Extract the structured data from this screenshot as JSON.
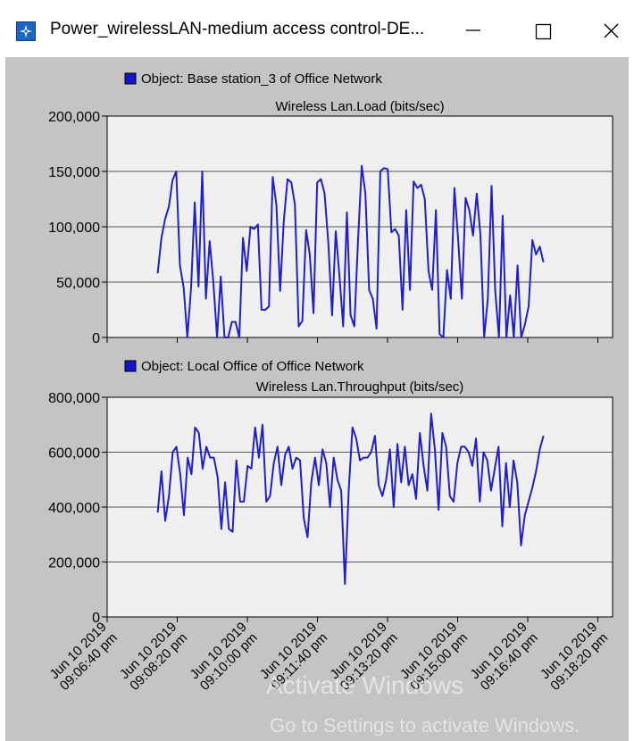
{
  "window": {
    "title": "Power_wirelessLAN-medium access control-DE...",
    "minimize_icon": "minimize-icon",
    "maximize_icon": "maximize-icon",
    "close_icon": "close-icon",
    "app_icon": "opnet-app-icon"
  },
  "colors": {
    "line": "#1f1fcc",
    "plot_bg": "#efefef",
    "panel_bg": "#c4c4c4",
    "legend_swatch": "#1414c8"
  },
  "x_ticks": [
    "Jun 10 2019\n09:06:40 pm",
    "Jun 10 2019\n09:08:20 pm",
    "Jun 10 2019\n09:10:00 pm",
    "Jun 10 2019\n09:11:40 pm",
    "Jun 10 2019\n09:13:20 pm",
    "Jun 10 2019\n09:15:00 pm",
    "Jun 10 2019\n09:16:40 pm",
    "Jun 10 2019\n09:18:20 pm"
  ],
  "chart_data": [
    {
      "type": "line",
      "legend": "Object: Base station_3 of Office Network",
      "title": "Wireless Lan.Load (bits/sec)",
      "y_ticks": [
        "0",
        "50,000",
        "100,000",
        "150,000",
        "200,000"
      ],
      "ylim": [
        0,
        200000
      ],
      "x_range": [
        0,
        3
      ],
      "x_start": 0.3,
      "x_end": 2.59,
      "values": [
        58000,
        90000,
        107000,
        118000,
        142000,
        150000,
        65000,
        45000,
        0,
        45000,
        122000,
        46000,
        150000,
        35000,
        87000,
        50000,
        0,
        55000,
        0,
        0,
        14000,
        14000,
        0,
        90000,
        60000,
        100000,
        98000,
        102000,
        25000,
        25000,
        28000,
        145000,
        120000,
        42000,
        105000,
        143000,
        140000,
        120000,
        10000,
        15000,
        97000,
        75000,
        22000,
        140000,
        143000,
        130000,
        85000,
        20000,
        96000,
        55000,
        10000,
        113000,
        20000,
        10000,
        87000,
        155000,
        130000,
        43000,
        35000,
        8000,
        150000,
        153000,
        152000,
        95000,
        98000,
        92000,
        25000,
        115000,
        43000,
        141000,
        135000,
        138000,
        125000,
        60000,
        43000,
        115000,
        3000,
        0,
        61000,
        35000,
        135000,
        88000,
        35000,
        126000,
        115000,
        92000,
        130000,
        93000,
        0,
        35000,
        137000,
        42000,
        0,
        110000,
        0,
        38000,
        0,
        65000,
        0,
        12000,
        28000,
        88000,
        75000,
        82000,
        68000
      ]
    },
    {
      "type": "line",
      "legend": "Object: Local Office of Office Network",
      "title": "Wireless Lan.Throughput (bits/sec)",
      "y_ticks": [
        "0",
        "200,000",
        "400,000",
        "600,000",
        "800,000"
      ],
      "ylim": [
        0,
        800000
      ],
      "x_range": [
        0,
        3
      ],
      "x_start": 0.3,
      "x_end": 2.59,
      "values": [
        380000,
        530000,
        350000,
        440000,
        600000,
        620000,
        520000,
        370000,
        580000,
        520000,
        690000,
        670000,
        540000,
        620000,
        580000,
        580000,
        510000,
        320000,
        490000,
        320000,
        310000,
        570000,
        420000,
        420000,
        550000,
        540000,
        690000,
        580000,
        700000,
        420000,
        440000,
        560000,
        620000,
        480000,
        590000,
        620000,
        540000,
        580000,
        570000,
        360000,
        290000,
        490000,
        580000,
        480000,
        610000,
        560000,
        400000,
        580000,
        500000,
        460000,
        120000,
        460000,
        690000,
        650000,
        570000,
        580000,
        580000,
        600000,
        660000,
        480000,
        440000,
        500000,
        610000,
        400000,
        630000,
        490000,
        620000,
        480000,
        520000,
        430000,
        670000,
        550000,
        460000,
        740000,
        610000,
        390000,
        670000,
        620000,
        440000,
        420000,
        560000,
        620000,
        620000,
        600000,
        550000,
        650000,
        420000,
        600000,
        570000,
        460000,
        540000,
        620000,
        330000,
        560000,
        400000,
        570000,
        490000,
        260000,
        370000,
        420000,
        470000,
        530000,
        610000,
        660000
      ]
    }
  ],
  "watermark": {
    "line1": "Activate Windows",
    "line2": "Go to Settings to activate Windows."
  }
}
